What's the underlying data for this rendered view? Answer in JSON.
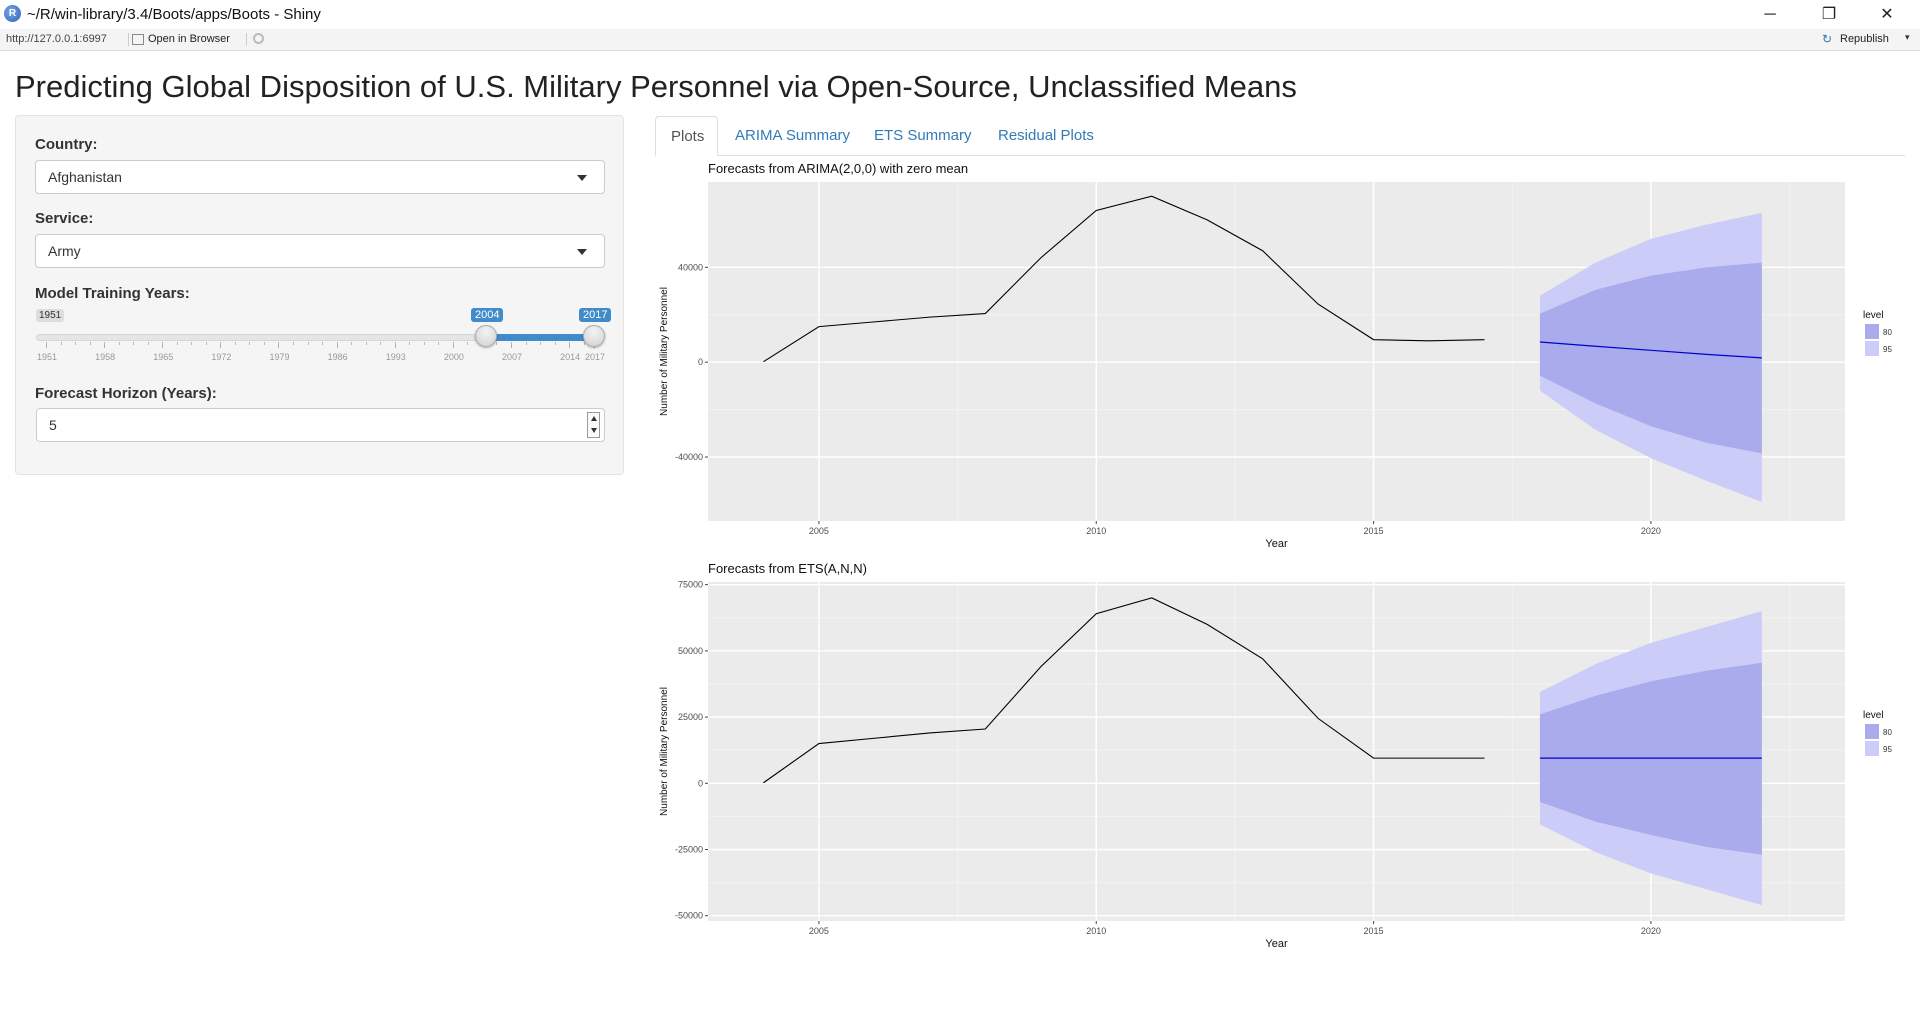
{
  "window": {
    "title": "~/R/win-library/3.4/Boots/apps/Boots - Shiny",
    "app_icon": "R",
    "buttons": {
      "minimize": "─",
      "restore": "❐",
      "close": "✕"
    }
  },
  "toolbar": {
    "url": "http://127.0.0.1:6997",
    "open_in_browser": "Open in Browser",
    "republish": "Republish",
    "republish_icon": "↻",
    "caret": "▾"
  },
  "page": {
    "title": "Predicting Global Disposition of U.S. Military Personnel via Open-Source, Unclassified Means"
  },
  "sidebar": {
    "country": {
      "label": "Country:",
      "value": "Afghanistan"
    },
    "service": {
      "label": "Service:",
      "value": "Army"
    },
    "training_years": {
      "label": "Model Training Years:",
      "min": 1951,
      "max": 2017,
      "from": 2004,
      "to": 2017,
      "min_label": "1951",
      "from_label": "2004",
      "to_label": "2017",
      "ticks": [
        "1951",
        "1958",
        "1965",
        "1972",
        "1979",
        "1986",
        "1993",
        "2000",
        "2007",
        "2014",
        "2017"
      ]
    },
    "horizon": {
      "label": "Forecast Horizon (Years):",
      "value": "5"
    }
  },
  "tabs": [
    "Plots",
    "ARIMA Summary",
    "ETS Summary",
    "Residual Plots"
  ],
  "colors": {
    "panel_bg": "#EBEBEB",
    "band80": "#A9ABEC",
    "band95": "#CBCDF8",
    "forecast_line": "#0000CC",
    "link": "#337ab7",
    "accent": "#428bca"
  },
  "chart_data": [
    {
      "type": "line",
      "title": "Forecasts from ARIMA(2,0,0) with zero mean",
      "xlabel": "Year",
      "ylabel": "Number of Military Personnel",
      "xlim": [
        2003,
        2023.5
      ],
      "ylim": [
        -67000,
        76000
      ],
      "xticks": [
        2005,
        2010,
        2015,
        2020
      ],
      "yticks": [
        -40000,
        0,
        40000
      ],
      "ytick_labels": [
        "-40000",
        "0",
        "40000"
      ],
      "grid": true,
      "legend": {
        "title": "level",
        "entries": [
          "80",
          "95"
        ],
        "placement": "right"
      },
      "series": [
        {
          "name": "historical",
          "x": [
            2004,
            2005,
            2006,
            2007,
            2008,
            2009,
            2010,
            2011,
            2012,
            2013,
            2014,
            2015,
            2016,
            2017
          ],
          "y": [
            200,
            15000,
            17000,
            19000,
            20500,
            44000,
            64000,
            70000,
            60000,
            47000,
            24500,
            9500,
            9000,
            9500
          ]
        },
        {
          "name": "forecast",
          "x": [
            2018,
            2019,
            2020,
            2021,
            2022
          ],
          "y": [
            8500,
            6700,
            5000,
            3300,
            1800
          ],
          "lo80": [
            -5700,
            -17400,
            -27000,
            -34000,
            -38500
          ],
          "hi80": [
            20500,
            30500,
            36500,
            40000,
            42000
          ],
          "lo95": [
            -12000,
            -28500,
            -40500,
            -50000,
            -59000
          ],
          "hi95": [
            28000,
            42000,
            52000,
            58000,
            63000
          ]
        }
      ]
    },
    {
      "type": "line",
      "title": "Forecasts from ETS(A,N,N)",
      "xlabel": "Year",
      "ylabel": "Number of Military Personnel",
      "xlim": [
        2003,
        2023.5
      ],
      "ylim": [
        -52000,
        76000
      ],
      "xticks": [
        2005,
        2010,
        2015,
        2020
      ],
      "yticks": [
        -50000,
        -25000,
        0,
        25000,
        50000,
        75000
      ],
      "ytick_labels": [
        "-50000",
        "-25000",
        "0",
        "25000",
        "50000",
        "75000"
      ],
      "grid": true,
      "legend": {
        "title": "level",
        "entries": [
          "80",
          "95"
        ],
        "placement": "right"
      },
      "series": [
        {
          "name": "historical",
          "x": [
            2004,
            2005,
            2006,
            2007,
            2008,
            2009,
            2010,
            2011,
            2012,
            2013,
            2014,
            2015,
            2016,
            2017
          ],
          "y": [
            200,
            15000,
            17000,
            19000,
            20500,
            44000,
            64000,
            70000,
            60000,
            47000,
            24500,
            9500,
            9500,
            9500
          ]
        },
        {
          "name": "forecast",
          "x": [
            2018,
            2019,
            2020,
            2021,
            2022
          ],
          "y": [
            9500,
            9500,
            9500,
            9500,
            9500
          ],
          "lo80": [
            -7000,
            -14500,
            -19500,
            -24000,
            -27000
          ],
          "hi80": [
            26000,
            33000,
            38500,
            42500,
            45500
          ],
          "lo95": [
            -15500,
            -26000,
            -34000,
            -40000,
            -46000
          ],
          "hi95": [
            34500,
            45000,
            53000,
            59000,
            65000
          ]
        }
      ]
    }
  ]
}
